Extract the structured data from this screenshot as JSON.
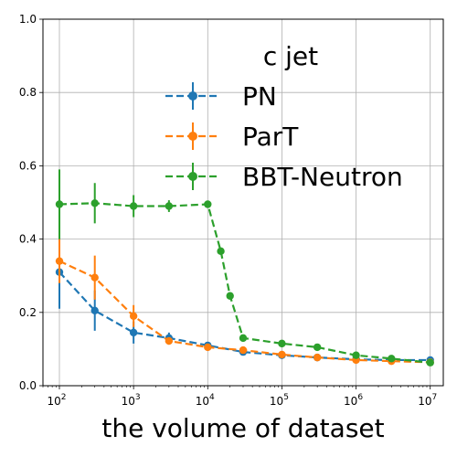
{
  "chart_data": {
    "type": "line",
    "title": "",
    "xlabel": "the volume of dataset",
    "ylabel": "",
    "x_scale": "log",
    "xlim": [
      60,
      15000000
    ],
    "ylim": [
      0.0,
      1.0
    ],
    "grid": true,
    "x_ticks": [
      {
        "value": 100,
        "base": "10",
        "exp": "2"
      },
      {
        "value": 1000,
        "base": "10",
        "exp": "3"
      },
      {
        "value": 10000,
        "base": "10",
        "exp": "4"
      },
      {
        "value": 100000,
        "base": "10",
        "exp": "5"
      },
      {
        "value": 1000000,
        "base": "10",
        "exp": "6"
      },
      {
        "value": 10000000,
        "base": "10",
        "exp": "7"
      }
    ],
    "y_ticks": [
      {
        "value": 0.0,
        "label": "0.0"
      },
      {
        "value": 0.2,
        "label": "0.2"
      },
      {
        "value": 0.4,
        "label": "0.4"
      },
      {
        "value": 0.6,
        "label": "0.6"
      },
      {
        "value": 0.8,
        "label": "0.8"
      },
      {
        "value": 1.0,
        "label": "1.0"
      }
    ],
    "legend": {
      "title": "c jet",
      "position": "upper-right"
    },
    "series": [
      {
        "name": "PN",
        "color": "#1f77b4",
        "points": [
          {
            "x": 100,
            "y": 0.31,
            "err": 0.1
          },
          {
            "x": 300,
            "y": 0.205,
            "err": 0.055
          },
          {
            "x": 1000,
            "y": 0.145,
            "err": 0.03
          },
          {
            "x": 3000,
            "y": 0.13,
            "err": 0.015
          },
          {
            "x": 10000,
            "y": 0.11,
            "err": 0.008
          },
          {
            "x": 30000,
            "y": 0.092,
            "err": 0.006
          },
          {
            "x": 100000,
            "y": 0.083,
            "err": 0.004
          },
          {
            "x": 300000,
            "y": 0.077,
            "err": 0.003
          },
          {
            "x": 1000000,
            "y": 0.072,
            "err": 0.003
          },
          {
            "x": 3000000,
            "y": 0.07,
            "err": 0.002
          },
          {
            "x": 10000000,
            "y": 0.07,
            "err": 0.002
          }
        ]
      },
      {
        "name": "ParT",
        "color": "#ff7f0e",
        "points": [
          {
            "x": 100,
            "y": 0.34,
            "err": 0.06
          },
          {
            "x": 300,
            "y": 0.295,
            "err": 0.06
          },
          {
            "x": 1000,
            "y": 0.19,
            "err": 0.03
          },
          {
            "x": 3000,
            "y": 0.122,
            "err": 0.01
          },
          {
            "x": 10000,
            "y": 0.105,
            "err": 0.006
          },
          {
            "x": 30000,
            "y": 0.097,
            "err": 0.004
          },
          {
            "x": 100000,
            "y": 0.085,
            "err": 0.003
          },
          {
            "x": 300000,
            "y": 0.077,
            "err": 0.003
          },
          {
            "x": 1000000,
            "y": 0.07,
            "err": 0.002
          },
          {
            "x": 3000000,
            "y": 0.067,
            "err": 0.002
          },
          {
            "x": 10000000,
            "y": 0.064,
            "err": 0.002
          }
        ]
      },
      {
        "name": "BBT-Neutron",
        "color": "#2ca02c",
        "points": [
          {
            "x": 100,
            "y": 0.495,
            "err": 0.095
          },
          {
            "x": 300,
            "y": 0.498,
            "err": 0.055
          },
          {
            "x": 1000,
            "y": 0.49,
            "err": 0.03
          },
          {
            "x": 3000,
            "y": 0.49,
            "err": 0.016
          },
          {
            "x": 10000,
            "y": 0.495,
            "err": 0.01
          },
          {
            "x": 15000,
            "y": 0.367,
            "err": 0.006
          },
          {
            "x": 20000,
            "y": 0.245,
            "err": 0.006
          },
          {
            "x": 30000,
            "y": 0.13,
            "err": 0.004
          },
          {
            "x": 100000,
            "y": 0.115,
            "err": 0.003
          },
          {
            "x": 300000,
            "y": 0.105,
            "err": 0.003
          },
          {
            "x": 1000000,
            "y": 0.083,
            "err": 0.002
          },
          {
            "x": 3000000,
            "y": 0.074,
            "err": 0.002
          },
          {
            "x": 10000000,
            "y": 0.063,
            "err": 0.002
          }
        ]
      }
    ]
  }
}
